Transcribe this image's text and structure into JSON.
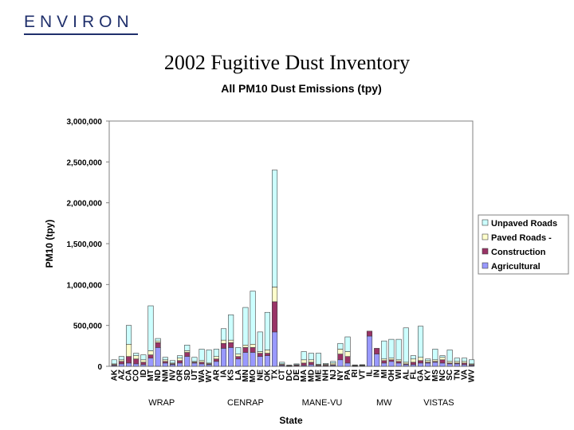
{
  "header": {
    "logo_text": "ENVIRON",
    "slide_title": "2002 Fugitive Dust Inventory"
  },
  "colors": {
    "unpaved": "#ccffff",
    "paved": "#ffffcc",
    "construction": "#993366",
    "agricultural": "#9999ff",
    "logo": "#1f2f6b"
  },
  "chart_data": {
    "type": "bar",
    "stacked": true,
    "title": "All PM10 Dust Emissions (tpy)",
    "xlabel": "State",
    "ylabel": "PM10 (tpy)",
    "ylim": [
      0,
      3000000
    ],
    "yticks": [
      0,
      500000,
      1000000,
      1500000,
      2000000,
      2500000,
      3000000
    ],
    "ytick_labels": [
      "0",
      "500,000",
      "1,000,000",
      "1,500,000",
      "2,000,000",
      "2,500,000",
      "3,000,000"
    ],
    "grid": false,
    "legend_position": "right",
    "categories": [
      "AK",
      "AZ",
      "CA",
      "CO",
      "ID",
      "MT",
      "ND",
      "NM",
      "NV",
      "OR",
      "SD",
      "UT",
      "WA",
      "WY",
      "AR",
      "IA",
      "KS",
      "LA",
      "MN",
      "MO",
      "NE",
      "OK",
      "TX",
      "CT",
      "DC",
      "DE",
      "MA",
      "MD",
      "ME",
      "NH",
      "NJ",
      "NY",
      "PA",
      "RI",
      "VT",
      "IL",
      "IN",
      "MI",
      "OH",
      "WI",
      "AL",
      "FL",
      "GA",
      "KY",
      "MS",
      "NC",
      "SC",
      "TN",
      "VA",
      "WV"
    ],
    "series": [
      {
        "name": "Agricultural",
        "values": [
          10000,
          30000,
          40000,
          30000,
          20000,
          100000,
          230000,
          40000,
          20000,
          40000,
          120000,
          40000,
          30000,
          20000,
          60000,
          220000,
          230000,
          90000,
          170000,
          170000,
          120000,
          130000,
          420000,
          10000,
          2000,
          5000,
          10000,
          20000,
          5000,
          5000,
          10000,
          80000,
          40000,
          2000,
          5000,
          370000,
          150000,
          40000,
          60000,
          40000,
          20000,
          20000,
          40000,
          40000,
          50000,
          40000,
          30000,
          30000,
          20000,
          10000
        ]
      },
      {
        "name": "Construction",
        "values": [
          10000,
          30000,
          80000,
          60000,
          30000,
          40000,
          60000,
          20000,
          10000,
          30000,
          50000,
          10000,
          20000,
          10000,
          30000,
          60000,
          60000,
          30000,
          60000,
          60000,
          40000,
          30000,
          370000,
          10000,
          5000,
          10000,
          30000,
          30000,
          10000,
          10000,
          10000,
          70000,
          80000,
          5000,
          5000,
          60000,
          70000,
          30000,
          20000,
          20000,
          10000,
          30000,
          30000,
          10000,
          10000,
          40000,
          10000,
          10000,
          20000,
          10000
        ]
      },
      {
        "name": "Paved Roads -",
        "values": [
          10000,
          20000,
          150000,
          40000,
          30000,
          50000,
          20000,
          20000,
          10000,
          30000,
          20000,
          10000,
          20000,
          10000,
          30000,
          40000,
          30000,
          30000,
          30000,
          40000,
          20000,
          40000,
          180000,
          10000,
          3000,
          5000,
          40000,
          30000,
          10000,
          10000,
          20000,
          60000,
          60000,
          5000,
          5000,
          0,
          0,
          20000,
          20000,
          20000,
          20000,
          40000,
          40000,
          20000,
          20000,
          30000,
          20000,
          20000,
          20000,
          10000
        ]
      },
      {
        "name": "Unpaved Roads",
        "values": [
          50000,
          40000,
          230000,
          30000,
          60000,
          550000,
          30000,
          30000,
          30000,
          30000,
          70000,
          50000,
          140000,
          160000,
          90000,
          140000,
          310000,
          80000,
          460000,
          650000,
          240000,
          460000,
          1430000,
          20000,
          5000,
          10000,
          100000,
          80000,
          135000,
          10000,
          20000,
          70000,
          180000,
          5000,
          5000,
          0,
          0,
          220000,
          230000,
          250000,
          420000,
          40000,
          380000,
          20000,
          130000,
          20000,
          140000,
          40000,
          40000,
          50000
        ]
      }
    ],
    "groups": [
      {
        "label": "WRAP",
        "from": 0,
        "to": 13
      },
      {
        "label": "CENRAP",
        "from": 14,
        "to": 22
      },
      {
        "label": "MANE-VU",
        "from": 23,
        "to": 34
      },
      {
        "label": "MW",
        "from": 35,
        "to": 39
      },
      {
        "label": "VISTAS",
        "from": 40,
        "to": 49
      }
    ],
    "legend": [
      "Unpaved Roads",
      "Paved Roads -",
      "Construction",
      "Agricultural"
    ]
  }
}
